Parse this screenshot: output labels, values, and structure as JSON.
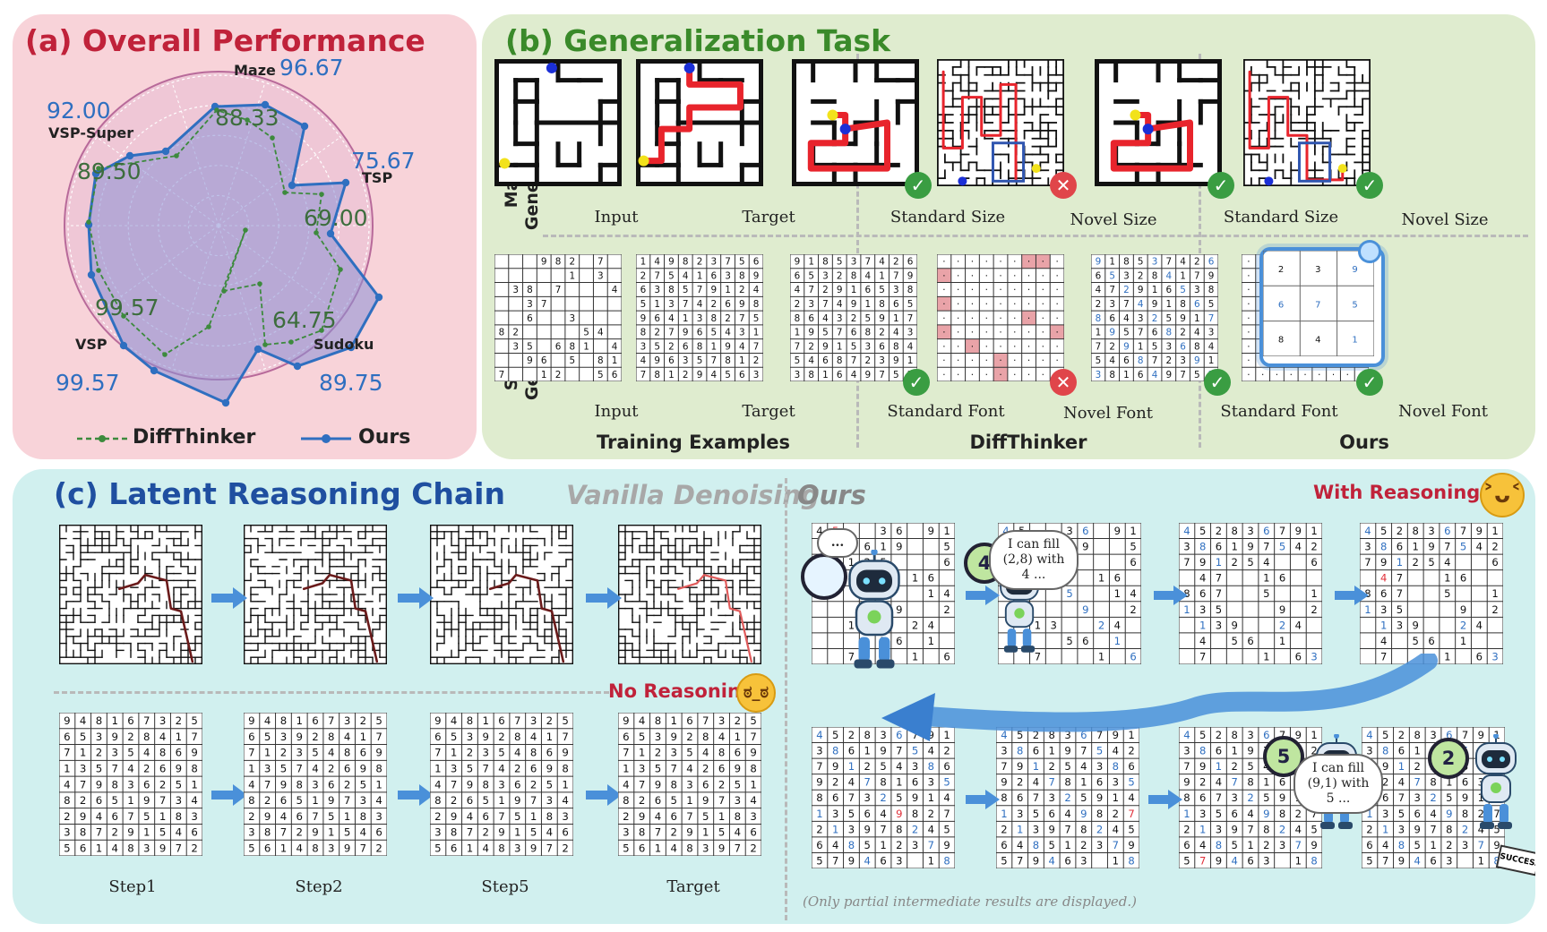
{
  "panel_a": {
    "title": "(a) Overall Performance",
    "axes": [
      {
        "name": "Maze",
        "ours": "96.67",
        "diff": "88.33"
      },
      {
        "name": "TSP",
        "ours": "75.67",
        "diff": "69.00"
      },
      {
        "name": "Sudoku",
        "ours": "89.75",
        "diff": "64.75"
      },
      {
        "name": "VSP",
        "ours": "99.57",
        "diff": "99.57"
      },
      {
        "name": "VSP-Super",
        "ours": "92.00",
        "diff": "89.50"
      }
    ],
    "legend": {
      "diff": "DiffThinker",
      "ours": "Ours"
    },
    "colors": {
      "ours": "#2f6fc0",
      "diff": "#3d8a3d",
      "title": "#c0223a"
    }
  },
  "panel_b": {
    "title": "(b) Generalization Task",
    "row_maze": "Maze Size Generalization",
    "row_sudoku": "Sudoku Font Generalization",
    "captions": {
      "input": "Input",
      "target": "Target",
      "standard_size": "Standard Size",
      "novel_size": "Novel Size",
      "standard_font": "Standard Font",
      "novel_font": "Novel Font"
    },
    "groups": {
      "training": "Training Examples",
      "diffthinker": "DiffThinker",
      "ours": "Ours"
    },
    "check": "✓",
    "cross": "✕",
    "zoom_digits": [
      "2",
      "3",
      "9",
      "6",
      "7",
      "5",
      "8",
      "4",
      "1"
    ],
    "sudoku_input": [
      "   982 7 ",
      "     1 3 ",
      " 38 7   4",
      "  37     ",
      "  6  3   ",
      "82    54 ",
      " 35 681 4",
      "  96 5 81",
      "7  12  56"
    ],
    "sudoku_target": [
      "149823756",
      "275416389",
      "638579124",
      "513742698",
      "964138275",
      "827965431",
      "352681947",
      "496357812",
      "781294563"
    ],
    "sudoku_standard": [
      "918537426",
      "653284179",
      "472916538",
      "237491865",
      "864325917",
      "195768243",
      "729153684",
      "546872391",
      "381649752"
    ],
    "colors": {
      "title": "#3a8a2a",
      "maze_path": "#e8242c",
      "start": "#1b2fd6",
      "goal": "#f2e21b"
    }
  },
  "panel_c": {
    "title": "(c) Latent Reasoning Chain",
    "vanilla": "Vanilla Denoising",
    "ours": "Ours",
    "with_reasoning": "With Reasoning",
    "no_reasoning": "No Reasoning",
    "steps": [
      "Step1",
      "Step2",
      "Step5",
      "Target"
    ],
    "bubble1": "...",
    "bubble2": "I can fill (2,8) with 4 ...",
    "bubble3": "I can fill (9,1) with 5 ...",
    "robot_badges": [
      "4",
      "5",
      "2"
    ],
    "flag": "SUCCESS",
    "footnote": "(Only partial intermediate results are displayed.)",
    "sudoku_final": [
      "948167325",
      "653928417",
      "712354869",
      "135742698",
      "479836251",
      "826519734",
      "294675183",
      "387291546",
      "561483972"
    ],
    "ours_grid_1": [
      "45  36 91",
      "  3619  5",
      "79125   6",
      "  47  16 ",
      "    5  14",
      "     9  2",
      "  13  24 ",
      "    56 1 ",
      "  7   1 63"
    ],
    "ours_grid_2": [
      "452836791",
      "386197542",
      "791254  6",
      " 47  16  ",
      "867  5  14",
      "135   9 2",
      " 139  24 ",
      " 4 56 1  ",
      " 7   1 63"
    ],
    "ours_grid_3": [
      "452836791",
      "386197542",
      "791254386",
      "924781635",
      "867325914",
      "135649827",
      "213978245",
      "648512379",
      "579463 18"
    ],
    "colors": {
      "title": "#1f4fa0",
      "vanilla": "#a8a8a8",
      "ours_label": "#888888",
      "with_reasoning": "#c0223a",
      "no_reasoning": "#c0223a",
      "arrow": "#4a90d9",
      "blue_digit": "#2f6fc0",
      "red_digit": "#e0303a"
    }
  }
}
